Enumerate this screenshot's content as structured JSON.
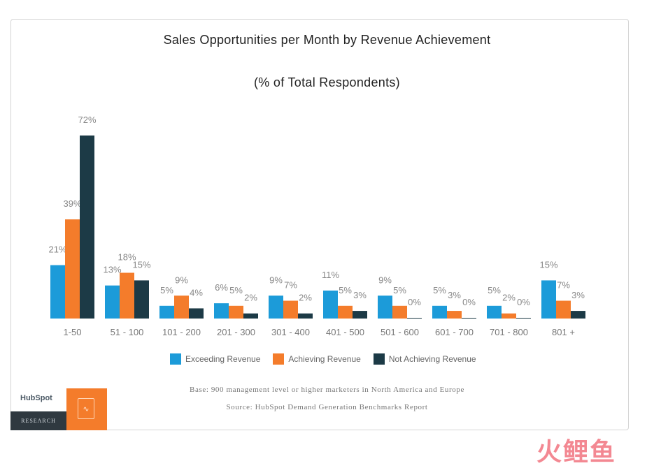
{
  "chart_data": {
    "type": "bar",
    "title": "Sales Opportunities per Month by Revenue Achievement",
    "subtitle": "(% of Total Respondents)",
    "categories": [
      "1-50",
      "51 - 100",
      "101 - 200",
      "201 - 300",
      "301 - 400",
      "401 - 500",
      "501 - 600",
      "601 - 700",
      "701 - 800",
      "801 +"
    ],
    "series": [
      {
        "name": "Exceeding Revenue",
        "color": "#1c9bd9",
        "values": [
          21,
          13,
          5,
          6,
          9,
          11,
          9,
          5,
          5,
          15
        ]
      },
      {
        "name": "Achieving Revenue",
        "color": "#f47c2b",
        "values": [
          39,
          18,
          9,
          5,
          7,
          5,
          5,
          3,
          2,
          7
        ]
      },
      {
        "name": "Not Achieving Revenue",
        "color": "#1c3a46",
        "values": [
          72,
          15,
          4,
          2,
          2,
          3,
          0,
          0,
          0,
          3
        ]
      }
    ],
    "ylim": [
      0,
      72
    ],
    "grid": false,
    "legend_position": "bottom"
  },
  "notes": {
    "base": "Base: 900 management level or higher marketers in North America and Europe",
    "source": "Source: HubSpot Demand Generation Benchmarks Report"
  },
  "branding": {
    "name": "HubSpot",
    "tag": "RESEARCH",
    "icon": "clipboard-pulse-icon"
  },
  "watermark": "火鲤鱼"
}
